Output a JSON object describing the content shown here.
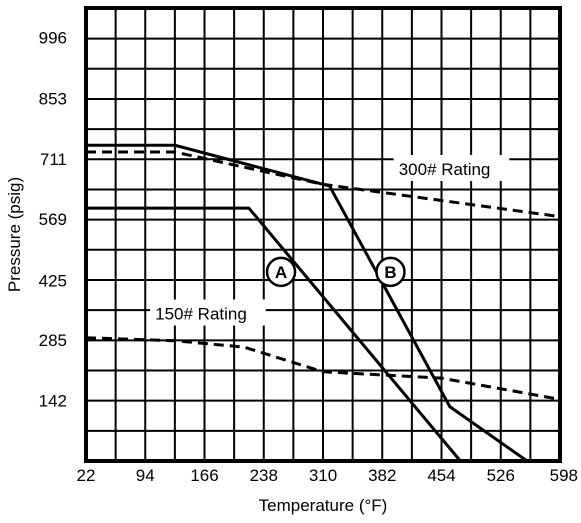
{
  "chart_data": {
    "type": "line",
    "title": "",
    "xlabel": "Temperature (°F)",
    "ylabel": "Pressure (psig)",
    "xlim": [
      22,
      598
    ],
    "ylim": [
      0,
      1066
    ],
    "x_ticks": [
      "22",
      "94",
      "166",
      "238",
      "310",
      "382",
      "454",
      "526",
      "598"
    ],
    "y_ticks": [
      "142",
      "285",
      "425",
      "569",
      "711",
      "853",
      "996"
    ],
    "x_tick_values": [
      22,
      94,
      166,
      238,
      310,
      382,
      454,
      526,
      598
    ],
    "y_tick_values": [
      142,
      285,
      425,
      569,
      711,
      853,
      996
    ],
    "grid": true,
    "grid_x_step": 36,
    "grid_y_step": 71,
    "series": [
      {
        "name": "A",
        "style": "solid",
        "color": "#000000",
        "x": [
          22,
          220,
          477
        ],
        "y": [
          595,
          595,
          0
        ]
      },
      {
        "name": "B",
        "style": "solid",
        "color": "#000000",
        "x": [
          22,
          130,
          318,
          464,
          558
        ],
        "y": [
          743,
          743,
          647,
          128,
          0
        ]
      },
      {
        "name": "",
        "style": "dashed",
        "color": "#000000",
        "x": [
          22,
          130,
          310,
          598
        ],
        "y": [
          727,
          727,
          651,
          575
        ]
      },
      {
        "name": "",
        "style": "dashed",
        "color": "#000000",
        "x": [
          22,
          130,
          214,
          310,
          454,
          598
        ],
        "y": [
          290,
          283,
          268,
          210,
          195,
          145
        ]
      }
    ],
    "annotations": [
      {
        "text": "300# Rating",
        "x": 402,
        "y": 673
      },
      {
        "text": "150# Rating",
        "x": 106,
        "y": 333
      }
    ],
    "circle_labels": [
      {
        "text": "A",
        "x": 259,
        "y": 445
      },
      {
        "text": "B",
        "x": 392,
        "y": 445
      }
    ]
  }
}
